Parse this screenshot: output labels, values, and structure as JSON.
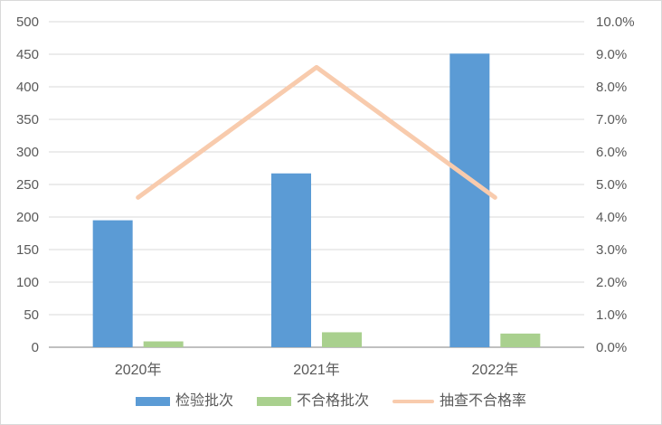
{
  "chart_data": {
    "type": "combo-bar-line",
    "title": "",
    "categories": [
      "2020年",
      "2021年",
      "2022年"
    ],
    "series": [
      {
        "name": "检验批次",
        "type": "bar",
        "axis": "left",
        "color": "#5B9BD5",
        "values": [
          195,
          267,
          451
        ]
      },
      {
        "name": "不合格批次",
        "type": "bar",
        "axis": "left",
        "color": "#A9D08E",
        "values": [
          9,
          23,
          21
        ]
      },
      {
        "name": "抽查不合格率",
        "type": "line",
        "axis": "right",
        "color": "#F8CBAD",
        "values": [
          4.6,
          8.6,
          4.6
        ]
      }
    ],
    "left_axis": {
      "min": 0,
      "max": 500,
      "step": 50,
      "tick_labels": [
        "0",
        "50",
        "100",
        "150",
        "200",
        "250",
        "300",
        "350",
        "400",
        "450",
        "500"
      ]
    },
    "right_axis": {
      "min": 0,
      "max": 10,
      "step": 1,
      "unit": "%",
      "tick_labels": [
        "0.0%",
        "1.0%",
        "2.0%",
        "3.0%",
        "4.0%",
        "5.0%",
        "6.0%",
        "7.0%",
        "8.0%",
        "9.0%",
        "10.0%"
      ]
    },
    "grid": true,
    "legend_position": "bottom",
    "legend": [
      "检验批次",
      "不合格批次",
      "抽查不合格率"
    ]
  },
  "colors": {
    "bar_blue": "#5B9BD5",
    "bar_green": "#A9D08E",
    "line_peach": "#F8CBAD",
    "gridline": "#D9D9D9",
    "axis_line": "#C0C0C0",
    "text": "#595959",
    "border": "#D9D9D9",
    "background": "#FFFFFF"
  }
}
